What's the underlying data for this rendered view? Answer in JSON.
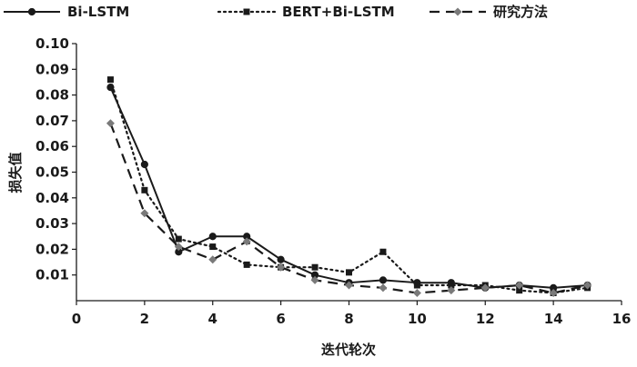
{
  "chart_data": {
    "type": "line",
    "xlabel": "迭代轮次",
    "ylabel": "损失值",
    "xlim": [
      0,
      16
    ],
    "ylim": [
      0,
      0.1
    ],
    "xticks": [
      0,
      2,
      4,
      6,
      8,
      10,
      12,
      14,
      16
    ],
    "yticks": [
      0.01,
      0.02,
      0.03,
      0.04,
      0.05,
      0.06,
      0.07,
      0.08,
      0.09,
      0.1
    ],
    "ytick_labels": [
      "0.01",
      "0.02",
      "0.03",
      "0.04",
      "0.05",
      "0.06",
      "0.07",
      "0.08",
      "0.09",
      "0.10"
    ],
    "grid": false,
    "legend_position": "top",
    "x": [
      1,
      2,
      3,
      4,
      5,
      6,
      7,
      8,
      9,
      10,
      11,
      12,
      13,
      14,
      15
    ],
    "series": [
      {
        "name": "Bi-LSTM",
        "style": "solid",
        "marker": "circle",
        "color": "#1a1a1a",
        "values": [
          0.083,
          0.053,
          0.019,
          0.025,
          0.025,
          0.016,
          0.01,
          0.007,
          0.008,
          0.007,
          0.007,
          0.005,
          0.006,
          0.005,
          0.006
        ]
      },
      {
        "name": "BERT+Bi-LSTM",
        "style": "dotted",
        "marker": "square",
        "color": "#1a1a1a",
        "values": [
          0.086,
          0.043,
          0.024,
          0.021,
          0.014,
          0.013,
          0.013,
          0.011,
          0.019,
          0.006,
          0.006,
          0.006,
          0.004,
          0.003,
          0.005
        ]
      },
      {
        "name": "研究方法",
        "style": "dashed",
        "marker": "diamond",
        "color": "#1a1a1a",
        "marker_color": "#7a7a7a",
        "values": [
          0.069,
          0.034,
          0.021,
          0.016,
          0.023,
          0.013,
          0.008,
          0.006,
          0.005,
          0.003,
          0.004,
          0.005,
          0.006,
          0.003,
          0.006
        ]
      }
    ]
  }
}
